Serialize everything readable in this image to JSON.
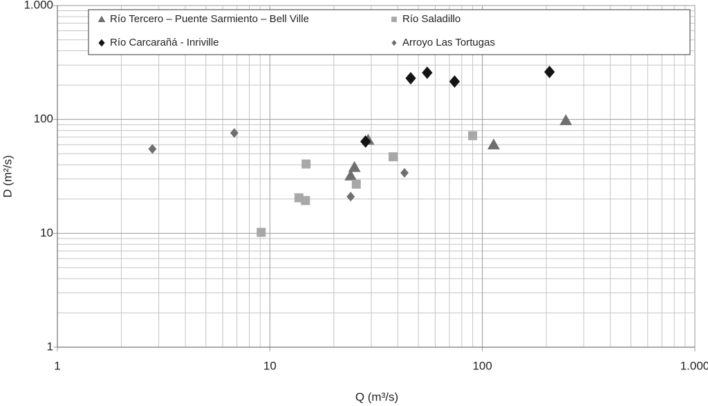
{
  "chart_data": {
    "type": "scatter",
    "xlabel": "Q (m³/s)",
    "ylabel": "D (m²/s)",
    "xscale": "log",
    "yscale": "log",
    "xlim": [
      1,
      1000
    ],
    "ylim": [
      1,
      1000
    ],
    "xticks": [
      1,
      10,
      100,
      {
        "value": 1000,
        "label": "1.000"
      }
    ],
    "yticks": [
      1,
      10,
      100,
      {
        "value": 1000,
        "label": "1.000"
      }
    ],
    "xminorticks": [
      2,
      3,
      4,
      5,
      6,
      7,
      8,
      9,
      20,
      30,
      40,
      50,
      60,
      70,
      80,
      90,
      200,
      300,
      400,
      500,
      600,
      700,
      800,
      900
    ],
    "yminorticks": [
      2,
      3,
      4,
      5,
      6,
      7,
      8,
      9,
      20,
      30,
      40,
      50,
      60,
      70,
      80,
      90,
      200,
      300,
      400,
      500,
      600,
      700,
      800,
      900
    ],
    "grid": true,
    "legend": "top",
    "series": [
      {
        "name": "Río Tercero – Puente Sarmiento – Bell Ville",
        "marker": "triangle",
        "color": "#6f6f6f",
        "x": [
          247,
          113,
          29,
          25,
          24
        ],
        "y": [
          98,
          60,
          66,
          38,
          32
        ]
      },
      {
        "name": "Río Saladillo",
        "marker": "square",
        "color": "#a8a8a8",
        "x": [
          9.1,
          13.7,
          14.7,
          14.8,
          25.5,
          38,
          90
        ],
        "y": [
          10.2,
          20.5,
          19.4,
          40.6,
          27,
          47,
          72
        ]
      },
      {
        "name": "Río Carcarañá - Inriville",
        "marker": "diamond",
        "color": "#141414",
        "x": [
          28.2,
          46,
          55,
          74,
          207
        ],
        "y": [
          64,
          230,
          257,
          215,
          261
        ]
      },
      {
        "name": "Arroyo Las Tortugas",
        "marker": "small-diamond",
        "color": "#6f6f6f",
        "x": [
          2.8,
          6.8,
          24,
          43
        ],
        "y": [
          55,
          76,
          21,
          34
        ]
      }
    ]
  }
}
